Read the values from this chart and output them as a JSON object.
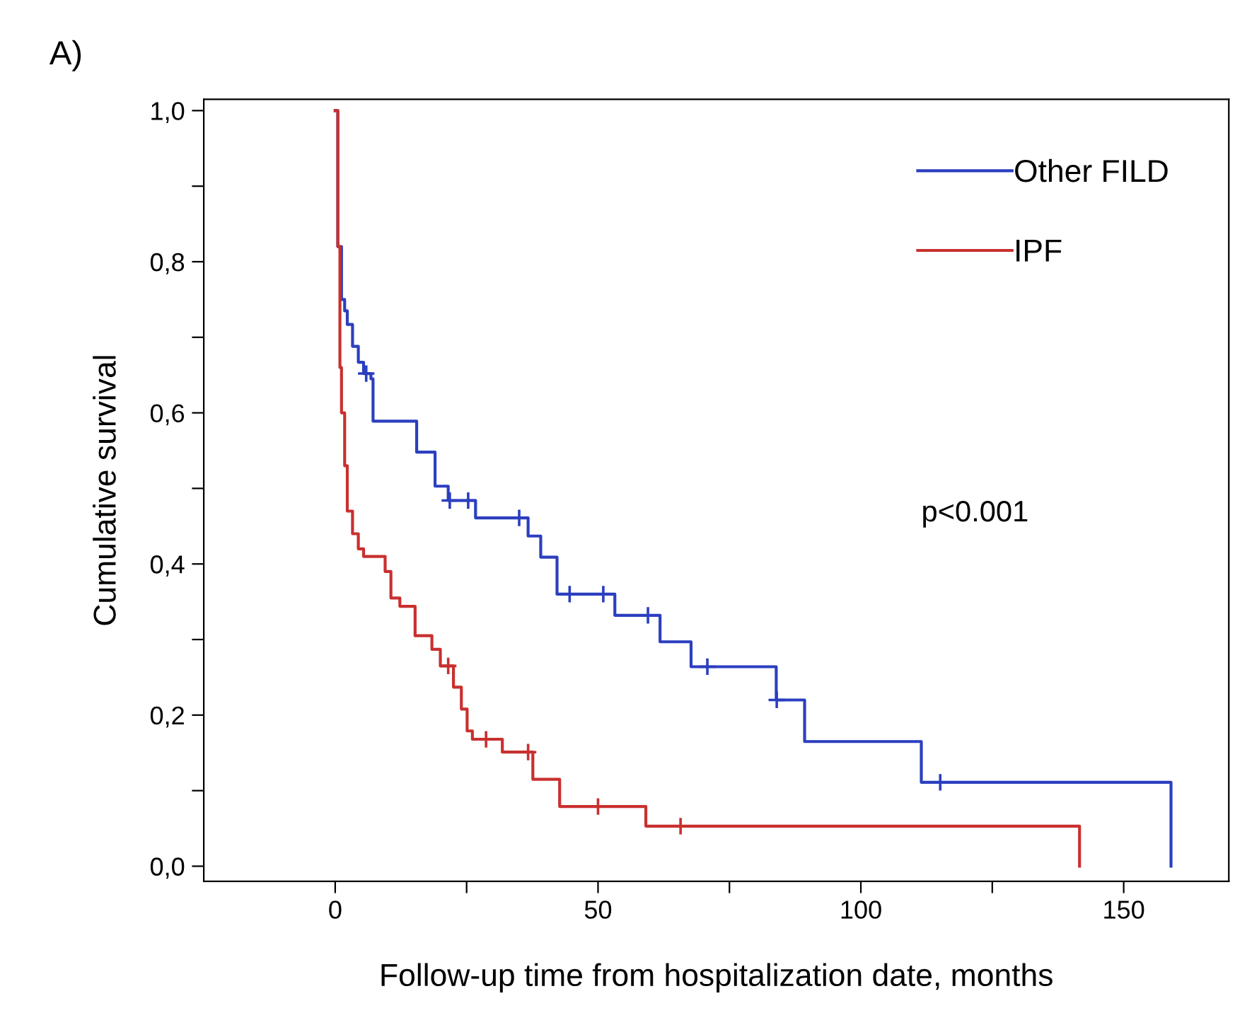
{
  "chart_data": {
    "type": "step",
    "xlabel": "Follow-up time from hospitalization date, months",
    "ylabel": "Cumulative survival",
    "annotations": [
      "A)",
      "p<0.001"
    ],
    "xlim": [
      -25,
      170
    ],
    "xticks": [
      0,
      {
        "value": 25,
        "label": null
      },
      50,
      {
        "value": 75,
        "label": null
      },
      100,
      {
        "value": 125,
        "label": null
      },
      150
    ],
    "ylim": [
      -0.02,
      1.015
    ],
    "yticks": [
      {
        "value": 0,
        "label": "0,0"
      },
      {
        "value": 0.1,
        "label": null
      },
      {
        "value": 0.2,
        "label": "0,2"
      },
      {
        "value": 0.3,
        "label": null
      },
      {
        "value": 0.4,
        "label": "0,4"
      },
      {
        "value": 0.5,
        "label": null
      },
      {
        "value": 0.6,
        "label": "0,6"
      },
      {
        "value": 0.7,
        "label": null
      },
      {
        "value": 0.8,
        "label": "0,8"
      },
      {
        "value": 0.9,
        "label": null
      },
      {
        "value": 1.0,
        "label": "1,0"
      }
    ],
    "grid": false,
    "legend": "top right",
    "series": [
      {
        "name": "Other FILD",
        "color": "#2b3fbf",
        "x": [
          0,
          0.5,
          1.2,
          1.8,
          2.3,
          3.3,
          4.4,
          5.4,
          6.8,
          7.2,
          15.5,
          19,
          21.5,
          26.7,
          36.7,
          39.1,
          42.2,
          53.2,
          61.8,
          67.7,
          83.9,
          89.3,
          111.5,
          159
        ],
        "values": [
          1.0,
          0.82,
          0.75,
          0.735,
          0.717,
          0.688,
          0.667,
          0.652,
          0.645,
          0.589,
          0.548,
          0.503,
          0.484,
          0.461,
          0.437,
          0.409,
          0.36,
          0.332,
          0.297,
          0.264,
          0.22,
          0.165,
          0.111,
          0.0
        ]
      },
      {
        "name": "IPF",
        "color": "#c8302f",
        "x": [
          0,
          0.5,
          0.9,
          1.2,
          1.8,
          2.3,
          3.3,
          4.4,
          5.4,
          9.5,
          10.6,
          12.3,
          15.2,
          18.4,
          20,
          22.5,
          24,
          25.1,
          26.1,
          31.8,
          37.6,
          42.7,
          59.1,
          141.6
        ],
        "values": [
          1.0,
          0.82,
          0.66,
          0.6,
          0.53,
          0.47,
          0.44,
          0.42,
          0.41,
          0.39,
          0.355,
          0.344,
          0.305,
          0.287,
          0.265,
          0.237,
          0.208,
          0.179,
          0.168,
          0.151,
          0.115,
          0.079,
          0.053,
          0.0
        ]
      },
      {
        "type": "scatter",
        "marker": "cross",
        "color": "#2b3fbf",
        "x": [
          5.9,
          21.8,
          25.3,
          35,
          44.6,
          51,
          59.5,
          70.8,
          84,
          115.1
        ],
        "values": [
          0.652,
          0.484,
          0.484,
          0.461,
          0.36,
          0.36,
          0.332,
          0.264,
          0.22,
          0.111
        ]
      },
      {
        "type": "scatter",
        "marker": "cross",
        "color": "#c8302f",
        "x": [
          21.5,
          28.7,
          36.7,
          50,
          65.7
        ],
        "values": [
          0.265,
          0.168,
          0.151,
          0.079,
          0.053
        ]
      }
    ]
  }
}
